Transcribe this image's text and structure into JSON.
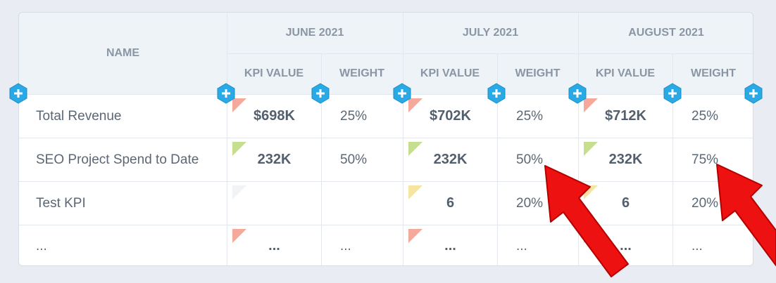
{
  "table": {
    "name_header": "NAME",
    "months": [
      {
        "label": "JUNE 2021",
        "kpi_label": "KPI VALUE",
        "weight_label": "WEIGHT"
      },
      {
        "label": "JULY 2021",
        "kpi_label": "KPI VALUE",
        "weight_label": "WEIGHT"
      },
      {
        "label": "AUGUST 2021",
        "kpi_label": "KPI VALUE",
        "weight_label": "WEIGHT"
      }
    ],
    "rows": [
      {
        "name": "Total Revenue",
        "cells": [
          {
            "kpi": "$698K",
            "weight": "25%",
            "flag": "red"
          },
          {
            "kpi": "$702K",
            "weight": "25%",
            "flag": "red"
          },
          {
            "kpi": "$712K",
            "weight": "25%",
            "flag": "red"
          }
        ]
      },
      {
        "name": "SEO Project Spend to Date",
        "cells": [
          {
            "kpi": "232K",
            "weight": "50%",
            "flag": "green"
          },
          {
            "kpi": "232K",
            "weight": "50%",
            "flag": "green"
          },
          {
            "kpi": "232K",
            "weight": "75%",
            "flag": "green"
          }
        ]
      },
      {
        "name": "Test KPI",
        "cells": [
          {
            "kpi": "",
            "weight": "",
            "flag": "grey"
          },
          {
            "kpi": "6",
            "weight": "20%",
            "flag": "yellow"
          },
          {
            "kpi": "6",
            "weight": "20%",
            "flag": "yellow"
          }
        ]
      },
      {
        "name": "...",
        "cells": [
          {
            "kpi": "...",
            "weight": "...",
            "flag": "red"
          },
          {
            "kpi": "...",
            "weight": "...",
            "flag": "red"
          },
          {
            "kpi": "...",
            "weight": "...",
            "flag": "red"
          }
        ]
      }
    ]
  },
  "colors": {
    "red": "#f4a99a",
    "green": "#c5df8f",
    "yellow": "#f6e4a1",
    "grey": "#f2f3f5",
    "plus_button": "#29a9e6",
    "annotation_arrow": "#ee1111"
  },
  "icons": {
    "add_column": "plus-icon",
    "annotation": "arrow-icon"
  }
}
